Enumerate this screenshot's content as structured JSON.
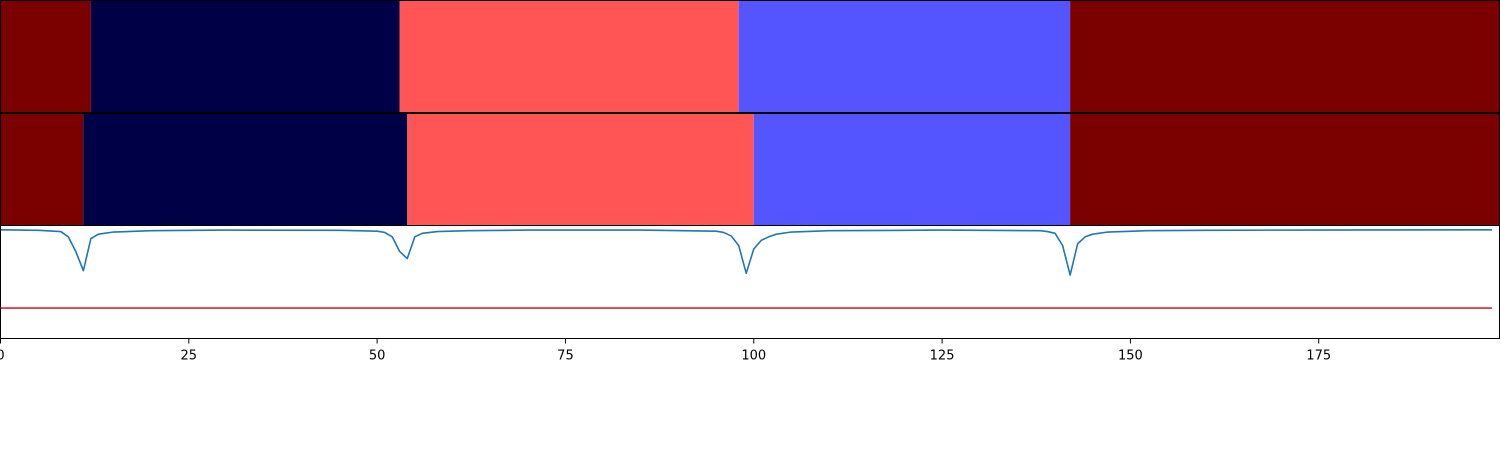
{
  "chart_data": [
    {
      "type": "heatmap",
      "panel": "segmentation-true",
      "segments": [
        {
          "start": 0,
          "end": 12,
          "color": "#7b0000"
        },
        {
          "start": 12,
          "end": 53,
          "color": "#000047"
        },
        {
          "start": 53,
          "end": 98,
          "color": "#ff5555"
        },
        {
          "start": 98,
          "end": 142,
          "color": "#5555ff"
        },
        {
          "start": 142,
          "end": 199,
          "color": "#7b0000"
        }
      ]
    },
    {
      "type": "heatmap",
      "panel": "segmentation-predicted",
      "segments": [
        {
          "start": 0,
          "end": 11,
          "color": "#7b0000"
        },
        {
          "start": 11,
          "end": 54,
          "color": "#000047"
        },
        {
          "start": 54,
          "end": 100,
          "color": "#ff5555"
        },
        {
          "start": 100,
          "end": 142,
          "color": "#5555ff"
        },
        {
          "start": 142,
          "end": 199,
          "color": "#7b0000"
        }
      ]
    },
    {
      "type": "line",
      "panel": "score-plot",
      "xlim": [
        0,
        199
      ],
      "ylim": [
        -1.25,
        0.05
      ],
      "x_ticks": [
        0,
        25,
        50,
        75,
        100,
        125,
        150,
        175
      ],
      "tick_labels": [
        "0",
        "25",
        "50",
        "75",
        "100",
        "125",
        "150",
        "175"
      ],
      "series": [
        {
          "color": "#1f77b4",
          "x": [
            0,
            5,
            8,
            9,
            10,
            11,
            12,
            13,
            15,
            20,
            30,
            45,
            50,
            51,
            52,
            53,
            54,
            55,
            56,
            58,
            62,
            70,
            85,
            95,
            96,
            97,
            98,
            99,
            100,
            101,
            102,
            103,
            105,
            110,
            125,
            138,
            139,
            140,
            141,
            142,
            143,
            144,
            145,
            147,
            152,
            160,
            175,
            198
          ],
          "y": [
            0,
            -0.005,
            -0.02,
            -0.08,
            -0.25,
            -0.47,
            -0.1,
            -0.05,
            -0.025,
            -0.01,
            -0.003,
            -0.005,
            -0.015,
            -0.03,
            -0.08,
            -0.25,
            -0.33,
            -0.08,
            -0.04,
            -0.02,
            -0.01,
            -0.003,
            -0.003,
            -0.015,
            -0.03,
            -0.07,
            -0.18,
            -0.5,
            -0.22,
            -0.12,
            -0.08,
            -0.05,
            -0.025,
            -0.01,
            -0.003,
            -0.01,
            -0.02,
            -0.04,
            -0.18,
            -0.52,
            -0.16,
            -0.08,
            -0.05,
            -0.025,
            -0.01,
            -0.005,
            -0.002,
            0
          ]
        },
        {
          "color": "#d62728",
          "x": [
            0,
            198
          ],
          "y": [
            -0.9,
            -0.9
          ]
        }
      ]
    }
  ]
}
